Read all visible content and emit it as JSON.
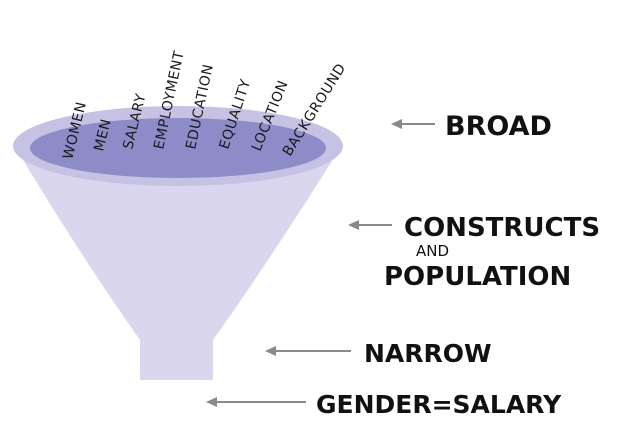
{
  "funnel": {
    "words": [
      "WOMEN",
      "MEN",
      "SALARY",
      "EMPLOYMENT",
      "EDUCATION",
      "EQUALITY",
      "LOCATION",
      "BACKGROUND"
    ],
    "colors": {
      "body": "#d9d6ee",
      "rim": "#c5c2e3",
      "mouth": "#8e8cc8"
    }
  },
  "labels": {
    "broad": "BROAD",
    "constructs": "CONSTRUCTS",
    "and": "AND",
    "population": "POPULATION",
    "narrow": "NARROW",
    "gender_salary": "GENDER=SALARY"
  },
  "arrow_color": "#8a8a8a"
}
